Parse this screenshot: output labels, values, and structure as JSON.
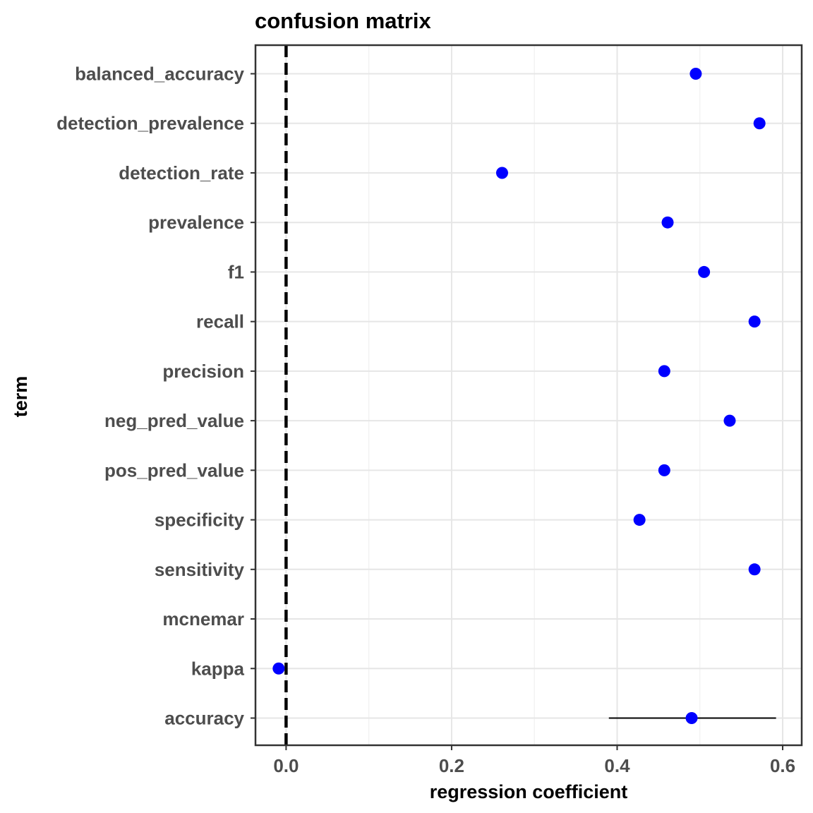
{
  "chart_data": {
    "type": "scatter",
    "title": "confusion matrix",
    "xlabel": "regression coefficient",
    "ylabel": "term",
    "xlim": [
      -0.037,
      0.623
    ],
    "x_ticks": [
      0.0,
      0.2,
      0.4,
      0.6
    ],
    "x_tick_labels": [
      "0.0",
      "0.2",
      "0.4",
      "0.6"
    ],
    "grid": true,
    "reference_line": {
      "x": 0,
      "style": "dashed",
      "color": "#000000"
    },
    "point_color": "#0000ff",
    "categories": [
      "balanced_accuracy",
      "detection_prevalence",
      "detection_rate",
      "prevalence",
      "f1",
      "recall",
      "precision",
      "neg_pred_value",
      "pos_pred_value",
      "specificity",
      "sensitivity",
      "mcnemar",
      "kappa",
      "accuracy"
    ],
    "points": [
      {
        "term": "balanced_accuracy",
        "x": 0.495
      },
      {
        "term": "detection_prevalence",
        "x": 0.572
      },
      {
        "term": "detection_rate",
        "x": 0.261
      },
      {
        "term": "prevalence",
        "x": 0.461
      },
      {
        "term": "f1",
        "x": 0.505
      },
      {
        "term": "recall",
        "x": 0.566
      },
      {
        "term": "precision",
        "x": 0.457
      },
      {
        "term": "neg_pred_value",
        "x": 0.536
      },
      {
        "term": "pos_pred_value",
        "x": 0.457
      },
      {
        "term": "specificity",
        "x": 0.427
      },
      {
        "term": "sensitivity",
        "x": 0.566
      },
      {
        "term": "mcnemar",
        "x": null
      },
      {
        "term": "kappa",
        "x": -0.009
      },
      {
        "term": "accuracy",
        "x": 0.49,
        "xmin": 0.39,
        "xmax": 0.592
      }
    ]
  }
}
